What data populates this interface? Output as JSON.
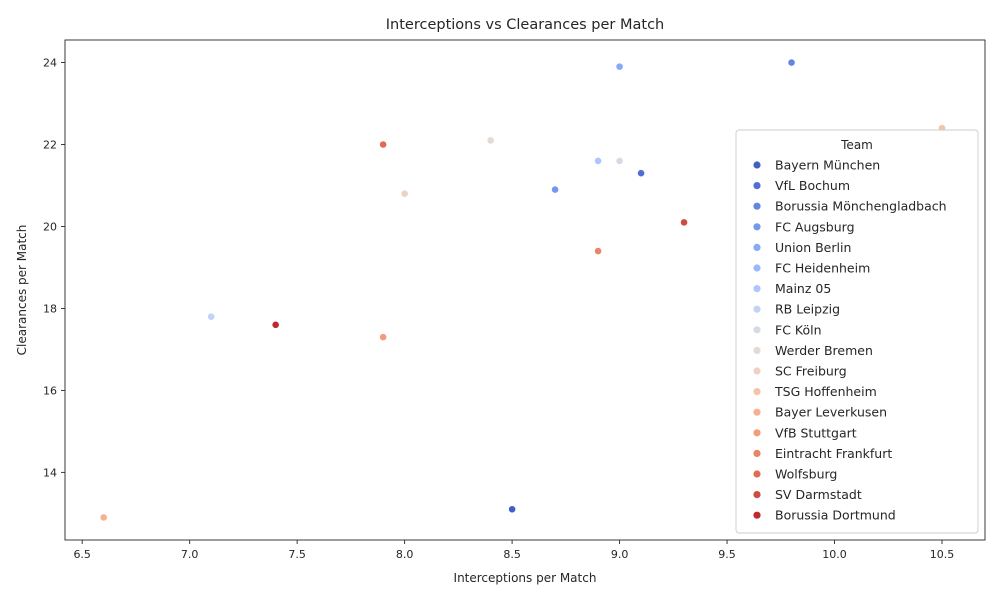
{
  "chart_data": {
    "type": "scatter",
    "title": "Interceptions vs Clearances per Match",
    "xlabel": "Interceptions per Match",
    "ylabel": "Clearances per Match",
    "xlim": [
      6.42,
      10.7
    ],
    "ylim": [
      12.35,
      24.55
    ],
    "xticks": [
      "6.5",
      "7.0",
      "7.5",
      "8.0",
      "8.5",
      "9.0",
      "9.5",
      "10.0",
      "10.5"
    ],
    "yticks": [
      "14",
      "16",
      "18",
      "20",
      "22",
      "24"
    ],
    "grid": false,
    "legend": {
      "title": "Team",
      "placement": "center-right"
    },
    "series": [
      {
        "name": "Bayern München",
        "color": "#4060c8",
        "points": [
          [
            8.5,
            13.1
          ]
        ]
      },
      {
        "name": "VfL Bochum",
        "color": "#516ed6",
        "points": [
          [
            9.1,
            21.3
          ]
        ]
      },
      {
        "name": "Borussia Mönchengladbach",
        "color": "#6485e4",
        "points": [
          [
            9.8,
            24.0
          ]
        ]
      },
      {
        "name": "FC Augsburg",
        "color": "#7497ef",
        "points": [
          [
            8.7,
            20.9
          ]
        ]
      },
      {
        "name": "Union Berlin",
        "color": "#86a9f8",
        "points": [
          [
            9.0,
            23.9
          ]
        ]
      },
      {
        "name": "FC Heidenheim",
        "color": "#9bb8fc",
        "points": [
          [
            10.1,
            22.0
          ]
        ]
      },
      {
        "name": "Mainz 05",
        "color": "#aec6fc",
        "points": [
          [
            8.9,
            21.6
          ]
        ]
      },
      {
        "name": "RB Leipzig",
        "color": "#c2d3f3",
        "points": [
          [
            7.1,
            17.8
          ]
        ]
      },
      {
        "name": "FC Köln",
        "color": "#d5dbe5",
        "points": [
          [
            9.0,
            21.6
          ]
        ]
      },
      {
        "name": "Werder Bremen",
        "color": "#e2dad5",
        "points": [
          [
            8.4,
            22.1
          ]
        ]
      },
      {
        "name": "SC Freiburg",
        "color": "#edd1c2",
        "points": [
          [
            8.0,
            20.8
          ]
        ]
      },
      {
        "name": "TSG Hoffenheim",
        "color": "#f3c3aa",
        "points": [
          [
            10.5,
            22.4
          ]
        ]
      },
      {
        "name": "Bayer Leverkusen",
        "color": "#f6b191",
        "points": [
          [
            6.6,
            12.9
          ]
        ]
      },
      {
        "name": "VfB Stuttgart",
        "color": "#f39c7b",
        "points": [
          [
            7.9,
            17.3
          ]
        ]
      },
      {
        "name": "Eintracht Frankfurt",
        "color": "#ea8466",
        "points": [
          [
            8.9,
            19.4
          ]
        ]
      },
      {
        "name": "Wolfsburg",
        "color": "#df6b53",
        "points": [
          [
            7.9,
            22.0
          ]
        ]
      },
      {
        "name": "SV Darmstadt",
        "color": "#cc4c41",
        "points": [
          [
            9.3,
            20.1
          ]
        ]
      },
      {
        "name": "Borussia Dortmund",
        "color": "#bd2a2f",
        "points": [
          [
            7.4,
            17.6
          ]
        ]
      }
    ]
  }
}
